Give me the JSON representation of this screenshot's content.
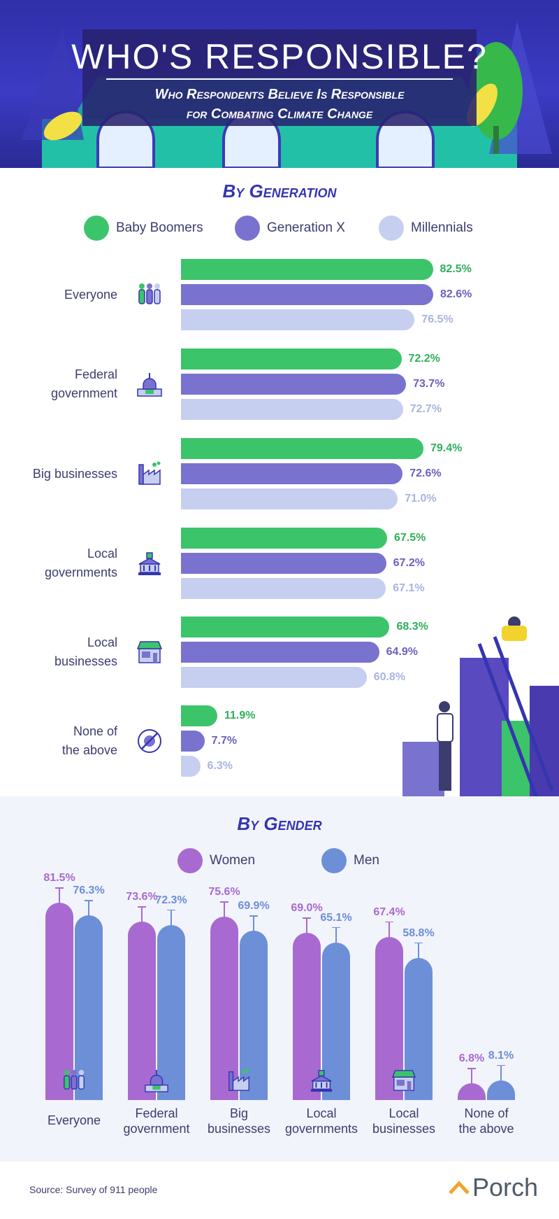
{
  "header": {
    "title": "WHO'S RESPONSIBLE?",
    "subtitle_line1": "Who Respondents Believe Is Responsible",
    "subtitle_line2": "for Combating Climate Change"
  },
  "colors": {
    "baby_boomers": "#3cc46a",
    "generation_x": "#7a72cf",
    "millennials": "#c7cff0",
    "women": "#a86ad0",
    "men": "#6c8fd8",
    "title_blue": "#3535b0"
  },
  "chart_data": [
    {
      "type": "bar",
      "orientation": "horizontal",
      "title": "By Generation",
      "categories": [
        "Everyone",
        "Federal government",
        "Big businesses",
        "Local governments",
        "Local businesses",
        "None of the above"
      ],
      "category_icons": [
        "people-icon",
        "capitol-icon",
        "factory-icon",
        "civic-building-icon",
        "storefront-icon",
        "none-icon"
      ],
      "series": [
        {
          "name": "Baby Boomers",
          "values": [
            82.5,
            72.2,
            79.4,
            67.5,
            68.3,
            11.9
          ]
        },
        {
          "name": "Generation X",
          "values": [
            82.6,
            73.7,
            72.6,
            67.2,
            64.9,
            7.7
          ]
        },
        {
          "name": "Millennials",
          "values": [
            76.5,
            72.7,
            71.0,
            67.1,
            60.8,
            6.3
          ]
        }
      ],
      "value_labels": [
        [
          "82.5%",
          "72.2%",
          "79.4%",
          "67.5%",
          "68.3%",
          "11.9%"
        ],
        [
          "82.6%",
          "73.7%",
          "72.6%",
          "67.2%",
          "64.9%",
          "7.7%"
        ],
        [
          "76.5%",
          "72.7%",
          "71.0%",
          "67.1%",
          "60.8%",
          "6.3%"
        ]
      ],
      "unit": "%",
      "legend_position": "top",
      "grid": false
    },
    {
      "type": "bar",
      "orientation": "vertical",
      "title": "By Gender",
      "categories": [
        "Everyone",
        "Federal government",
        "Big businesses",
        "Local governments",
        "Local businesses",
        "None of the above"
      ],
      "category_icons": [
        "people-icon",
        "capitol-icon",
        "factory-icon",
        "civic-building-icon",
        "storefront-icon",
        "none-icon"
      ],
      "series": [
        {
          "name": "Women",
          "values": [
            81.5,
            73.6,
            75.6,
            69.0,
            67.4,
            6.8
          ]
        },
        {
          "name": "Men",
          "values": [
            76.3,
            72.3,
            69.9,
            65.1,
            58.8,
            8.1
          ]
        }
      ],
      "value_labels": [
        [
          "81.5%",
          "73.6%",
          "75.6%",
          "69.0%",
          "67.4%",
          "6.8%"
        ],
        [
          "76.3%",
          "72.3%",
          "69.9%",
          "65.1%",
          "58.8%",
          "8.1%"
        ]
      ],
      "unit": "%",
      "error_bars": true,
      "legend_position": "top",
      "grid": false
    }
  ],
  "generation": {
    "title": "By Generation",
    "legend": [
      "Baby Boomers",
      "Generation X",
      "Millennials"
    ],
    "labels": [
      [
        "Everyone"
      ],
      [
        "Federal",
        "government"
      ],
      [
        "Big businesses"
      ],
      [
        "Local",
        "governments"
      ],
      [
        "Local",
        "businesses"
      ],
      [
        "None of",
        "the above"
      ]
    ]
  },
  "gender": {
    "title": "By Gender",
    "legend": [
      "Women",
      "Men"
    ],
    "labels": [
      [
        "Everyone"
      ],
      [
        "Federal",
        "government"
      ],
      [
        "Big",
        "businesses"
      ],
      [
        "Local",
        "governments"
      ],
      [
        "Local",
        "businesses"
      ],
      [
        "None of",
        "the above"
      ]
    ]
  },
  "footer": {
    "source": "Source: Survey of 911 people",
    "brand": "Porch"
  }
}
